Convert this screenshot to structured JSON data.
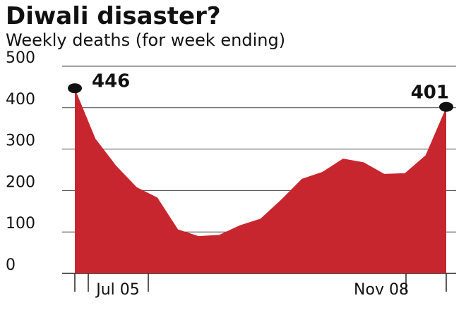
{
  "chart_data": {
    "type": "area",
    "title": "Diwali disaster?",
    "subtitle": "Weekly deaths (for week ending)",
    "xlabel": "",
    "ylabel": "",
    "ylim": [
      0,
      500
    ],
    "yticks": [
      0,
      100,
      200,
      300,
      400,
      500
    ],
    "yticklabels": [
      "0",
      "100",
      "200",
      "300",
      "400",
      "500"
    ],
    "xticklabels": [
      {
        "label": "Jul 05",
        "index": 1
      },
      {
        "label": "Nov 08",
        "index": 19
      }
    ],
    "grid": true,
    "series": [
      {
        "values": [
          446,
          325,
          260,
          208,
          183,
          106,
          90,
          93,
          116,
          132,
          178,
          228,
          245,
          277,
          268,
          240,
          242,
          285,
          401
        ],
        "color": "#c8262e"
      }
    ],
    "annotations": [
      {
        "text": "446",
        "index": 0
      },
      {
        "text": "401",
        "index": 18
      }
    ]
  }
}
